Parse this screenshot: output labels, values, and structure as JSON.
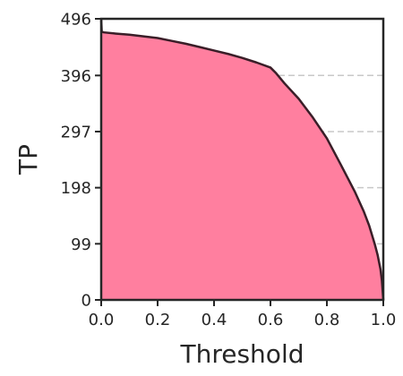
{
  "chart_data": {
    "type": "area",
    "title": "",
    "xlabel": "Threshold",
    "ylabel": "TP",
    "xlim": [
      0.0,
      1.0
    ],
    "ylim": [
      0,
      496
    ],
    "xticks": [
      "0.0",
      "0.2",
      "0.4",
      "0.6",
      "0.8",
      "1.0"
    ],
    "yticks": [
      "0",
      "99",
      "198",
      "297",
      "396",
      "496"
    ],
    "grid": "horizontal dashed",
    "legend": "none",
    "colors": {
      "fill": "#ff7f9f",
      "line": "#3a1e28",
      "grid": "#c8c8c8",
      "axis": "#262626"
    },
    "series": [
      {
        "x": [
          0.0,
          0.002,
          0.01,
          0.05,
          0.1,
          0.15,
          0.2,
          0.25,
          0.3,
          0.35,
          0.4,
          0.45,
          0.5,
          0.55,
          0.6,
          0.62,
          0.65,
          0.7,
          0.75,
          0.8,
          0.85,
          0.9,
          0.93,
          0.95,
          0.97,
          0.98,
          0.99,
          0.995,
          1.0
        ],
        "y": [
          496,
          473,
          472,
          470,
          468,
          465,
          462,
          457,
          452,
          446,
          440,
          434,
          427,
          419,
          410,
          400,
          382,
          355,
          322,
          285,
          238,
          190,
          157,
          131,
          98,
          79,
          54,
          34,
          0
        ]
      }
    ]
  }
}
